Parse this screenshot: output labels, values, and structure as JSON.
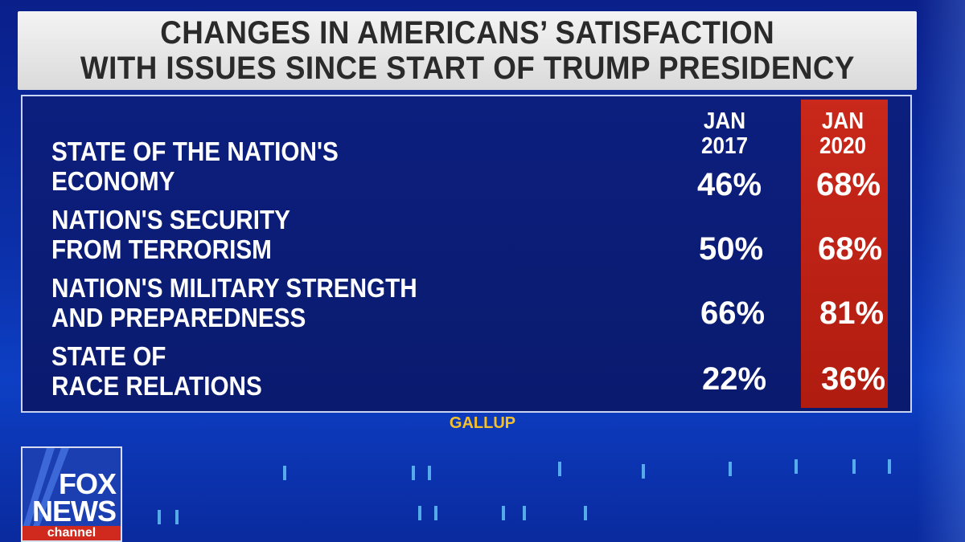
{
  "title": {
    "line1": "CHANGES IN AMERICANS’ SATISFACTION",
    "line2": "WITH ISSUES SINCE START OF TRUMP PRESIDENCY"
  },
  "source": "GALLUP",
  "logo": {
    "line1": "FOX",
    "line2": "NEWS",
    "line3": "channel"
  },
  "colors": {
    "highlight": "#c0261a",
    "panel": "#0c1f7e",
    "title_bg": "#e6e6e6",
    "source": "#f5c02a"
  },
  "chart_data": {
    "type": "table",
    "title": "CHANGES IN AMERICANS’ SATISFACTION WITH ISSUES SINCE START OF TRUMP PRESIDENCY",
    "columns": [
      {
        "line1": "JAN",
        "line2": "2017"
      },
      {
        "line1": "JAN",
        "line2": "2020"
      }
    ],
    "series": [
      {
        "name": "JAN 2017",
        "values": [
          "46%",
          "50%",
          "66%",
          "22%"
        ]
      },
      {
        "name": "JAN 2020",
        "values": [
          "68%",
          "68%",
          "81%",
          "36%"
        ]
      }
    ],
    "rows": [
      {
        "line1": "STATE OF THE NATION'S",
        "line2": "ECONOMY",
        "jan2017": "46%",
        "jan2020": "68%"
      },
      {
        "line1": "NATION'S SECURITY",
        "line2": "FROM TERRORISM",
        "jan2017": "50%",
        "jan2020": "68%"
      },
      {
        "line1": "NATION'S MILITARY STRENGTH",
        "line2": "AND PREPAREDNESS",
        "jan2017": "66%",
        "jan2020": "81%"
      },
      {
        "line1": "STATE OF",
        "line2": "RACE RELATIONS",
        "jan2017": "22%",
        "jan2020": "36%"
      }
    ],
    "source": "GALLUP"
  }
}
